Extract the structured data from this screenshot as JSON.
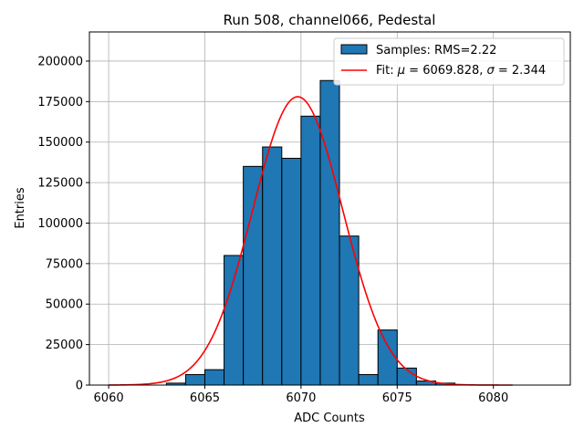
{
  "chart_data": {
    "type": "bar",
    "title": "Run 508, channel066, Pedestal",
    "xlabel": "ADC Counts",
    "ylabel": "Entries",
    "xlim": [
      6059,
      6084
    ],
    "ylim": [
      0,
      218000
    ],
    "grid": true,
    "x_ticks": [
      6060,
      6065,
      6070,
      6075,
      6080
    ],
    "y_ticks": [
      0,
      25000,
      50000,
      75000,
      100000,
      125000,
      150000,
      175000,
      200000
    ],
    "histogram": {
      "name": "Samples: RMS=2.22",
      "bin_edges": [
        6063.0,
        6064.0,
        6065.0,
        6066.0,
        6067.0,
        6068.0,
        6069.0,
        6070.0,
        6071.0,
        6072.0,
        6073.0,
        6074.0,
        6075.0,
        6076.0,
        6077.0,
        6078.0
      ],
      "counts": [
        1200,
        6500,
        9500,
        80000,
        135000,
        147000,
        140000,
        166000,
        188000,
        92000,
        6500,
        34000,
        10500,
        2500,
        1200
      ],
      "color": "#1f77b4",
      "edge_color": "#000000"
    },
    "fit": {
      "name_prefix": "Fit: ",
      "mu_symbol": "μ",
      "mu_text": " = 6069.828, ",
      "sigma_symbol": "σ",
      "sigma_text": " = 2.344",
      "type": "gaussian",
      "mu": 6069.828,
      "sigma": 2.344,
      "amplitude": 178000,
      "x_range": [
        6060,
        6081
      ],
      "color": "#ff0000"
    },
    "legend_position": "top-right"
  }
}
